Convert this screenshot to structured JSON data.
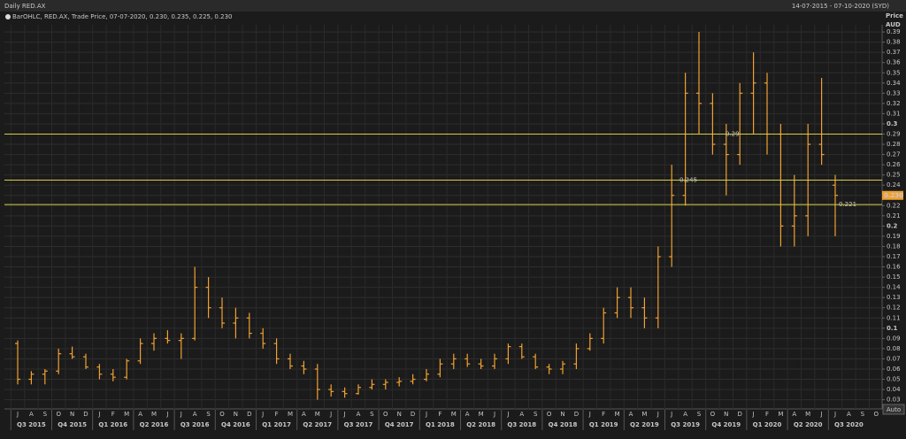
{
  "header": {
    "title": "Daily RED.AX",
    "range": "14-07-2015 - 07-10-2020 (SYD)",
    "legend": "BarOHLC, RED.AX, Trade Price, 07-07-2020, 0.230, 0.235, 0.225, 0.230",
    "auto_button": "Auto"
  },
  "chart_data": {
    "type": "ohlc",
    "color": "#f0a030",
    "y_axis_title": "Price",
    "y_axis_unit": "AUD",
    "categories": [
      "J",
      "A",
      "S",
      "O",
      "N",
      "D",
      "J",
      "F",
      "M",
      "A",
      "M",
      "J",
      "J",
      "A",
      "S",
      "O",
      "N",
      "D",
      "J",
      "F",
      "M",
      "A",
      "M",
      "J",
      "J",
      "A",
      "S",
      "O",
      "N",
      "D",
      "J",
      "F",
      "M",
      "A",
      "M",
      "J",
      "J",
      "A",
      "S",
      "O",
      "N",
      "D",
      "J",
      "F",
      "M",
      "A",
      "M",
      "J",
      "J",
      "A",
      "S",
      "O",
      "N",
      "D",
      "J",
      "F",
      "M",
      "A",
      "M",
      "J",
      "J",
      "A",
      "S",
      "O"
    ],
    "quarters": [
      "Q3 2015",
      "Q4 2015",
      "Q1 2016",
      "Q2 2016",
      "Q3 2016",
      "Q4 2016",
      "Q1 2017",
      "Q2 2017",
      "Q3 2017",
      "Q4 2017",
      "Q1 2018",
      "Q2 2018",
      "Q3 2018",
      "Q4 2018",
      "Q1 2019",
      "Q2 2019",
      "Q3 2019",
      "Q4 2019",
      "Q1 2020",
      "Q2 2020",
      "Q3 2020"
    ],
    "open": [
      0.085,
      0.05,
      0.055,
      0.058,
      0.075,
      0.072,
      0.062,
      0.055,
      0.052,
      0.068,
      0.085,
      0.09,
      0.088,
      0.09,
      0.14,
      0.12,
      0.105,
      0.11,
      0.095,
      0.085,
      0.07,
      0.063,
      0.06,
      0.04,
      0.038,
      0.036,
      0.042,
      0.045,
      0.047,
      0.048,
      0.05,
      0.055,
      0.065,
      0.07,
      0.065,
      0.063,
      0.07,
      0.082,
      0.072,
      0.062,
      0.06,
      0.065,
      0.08,
      0.09,
      0.115,
      0.13,
      0.12,
      0.11,
      0.17,
      0.23,
      0.33,
      0.32,
      0.28,
      0.27,
      0.33,
      0.34,
      0.29,
      0.2,
      0.21,
      0.28,
      0.24,
      null,
      null,
      null
    ],
    "high": [
      0.088,
      0.058,
      0.06,
      0.08,
      0.082,
      0.075,
      0.065,
      0.06,
      0.07,
      0.09,
      0.095,
      0.098,
      0.095,
      0.16,
      0.15,
      0.13,
      0.12,
      0.115,
      0.1,
      0.09,
      0.075,
      0.068,
      0.065,
      0.045,
      0.042,
      0.045,
      0.05,
      0.05,
      0.052,
      0.055,
      0.06,
      0.07,
      0.075,
      0.075,
      0.07,
      0.075,
      0.085,
      0.085,
      0.075,
      0.065,
      0.068,
      0.085,
      0.095,
      0.12,
      0.14,
      0.14,
      0.13,
      0.18,
      0.26,
      0.35,
      0.39,
      0.33,
      0.3,
      0.34,
      0.37,
      0.35,
      0.3,
      0.25,
      0.3,
      0.345,
      0.25,
      null,
      null,
      null
    ],
    "low": [
      0.045,
      0.045,
      0.045,
      0.055,
      0.07,
      0.06,
      0.05,
      0.048,
      0.05,
      0.065,
      0.078,
      0.085,
      0.07,
      0.088,
      0.11,
      0.1,
      0.09,
      0.09,
      0.08,
      0.065,
      0.06,
      0.055,
      0.03,
      0.033,
      0.032,
      0.035,
      0.04,
      0.04,
      0.043,
      0.045,
      0.048,
      0.052,
      0.06,
      0.062,
      0.06,
      0.06,
      0.065,
      0.07,
      0.06,
      0.055,
      0.055,
      0.06,
      0.078,
      0.085,
      0.11,
      0.11,
      0.1,
      0.1,
      0.16,
      0.22,
      0.29,
      0.27,
      0.23,
      0.26,
      0.29,
      0.27,
      0.18,
      0.18,
      0.19,
      0.26,
      0.19,
      null,
      null,
      null
    ],
    "close": [
      0.05,
      0.055,
      0.058,
      0.075,
      0.072,
      0.062,
      0.055,
      0.052,
      0.068,
      0.085,
      0.09,
      0.088,
      0.09,
      0.14,
      0.12,
      0.105,
      0.11,
      0.095,
      0.085,
      0.07,
      0.063,
      0.06,
      0.04,
      0.038,
      0.036,
      0.042,
      0.045,
      0.047,
      0.048,
      0.05,
      0.055,
      0.065,
      0.07,
      0.065,
      0.063,
      0.07,
      0.082,
      0.072,
      0.062,
      0.06,
      0.065,
      0.08,
      0.09,
      0.115,
      0.13,
      0.12,
      0.11,
      0.17,
      0.23,
      0.33,
      0.32,
      0.28,
      0.27,
      0.33,
      0.34,
      0.29,
      0.2,
      0.21,
      0.28,
      0.27,
      0.23,
      null,
      null,
      null
    ],
    "ylim": [
      0.021,
      0.397
    ],
    "yticks": [
      0.03,
      0.04,
      0.05,
      0.06,
      0.07,
      0.08,
      0.09,
      0.1,
      0.11,
      0.12,
      0.13,
      0.14,
      0.15,
      0.16,
      0.17,
      0.18,
      0.19,
      0.2,
      0.21,
      0.22,
      0.23,
      0.24,
      0.25,
      0.26,
      0.27,
      0.28,
      0.29,
      0.3,
      0.31,
      0.32,
      0.33,
      0.34,
      0.35,
      0.36,
      0.37,
      0.38,
      0.39
    ],
    "grid": true,
    "hlines": [
      {
        "value": 0.29,
        "label": "0.29"
      },
      {
        "value": 0.245,
        "label": "0.245"
      },
      {
        "value": 0.221,
        "label": "0.221"
      }
    ],
    "last_price": {
      "value": 0.23,
      "label": "0.230"
    }
  }
}
